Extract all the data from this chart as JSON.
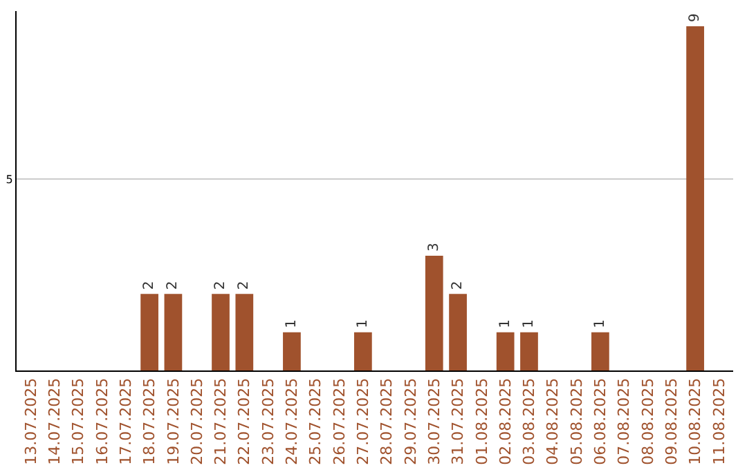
{
  "chart_data": {
    "type": "bar",
    "categories": [
      "13.07.2025",
      "14.07.2025",
      "15.07.2025",
      "16.07.2025",
      "17.07.2025",
      "18.07.2025",
      "19.07.2025",
      "20.07.2025",
      "21.07.2025",
      "22.07.2025",
      "23.07.2025",
      "24.07.2025",
      "25.07.2025",
      "26.07.2025",
      "27.07.2025",
      "28.07.2025",
      "29.07.2025",
      "30.07.2025",
      "31.07.2025",
      "01.08.2025",
      "02.08.2025",
      "03.08.2025",
      "04.08.2025",
      "05.08.2025",
      "06.08.2025",
      "07.08.2025",
      "08.08.2025",
      "09.08.2025",
      "10.08.2025",
      "11.08.2025"
    ],
    "values": [
      0,
      0,
      0,
      0,
      0,
      2,
      2,
      0,
      2,
      2,
      0,
      1,
      0,
      0,
      1,
      0,
      0,
      3,
      2,
      0,
      1,
      1,
      0,
      0,
      1,
      0,
      0,
      0,
      9,
      0
    ],
    "value_labels": [
      null,
      null,
      null,
      null,
      null,
      "2",
      "2",
      null,
      "2",
      "2",
      null,
      "1",
      null,
      null,
      "1",
      null,
      null,
      "3",
      "2",
      null,
      "1",
      "1",
      null,
      null,
      "1",
      null,
      null,
      null,
      "9",
      null
    ],
    "color": "#a0522d",
    "ylim": [
      0,
      9.4
    ],
    "yticks": [
      5
    ],
    "grid": "y"
  }
}
